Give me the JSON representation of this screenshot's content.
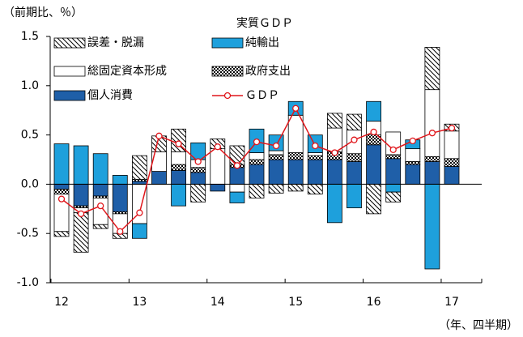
{
  "chart_data": {
    "type": "bar",
    "title": "実質ＧＤＰ",
    "y_label": "（前期比、％）",
    "x_label": "（年、四半期）",
    "categories": [
      "12",
      null,
      null,
      null,
      "13",
      null,
      null,
      null,
      "14",
      null,
      null,
      null,
      "15",
      null,
      null,
      null,
      "16",
      null,
      null,
      null,
      "17"
    ],
    "ylim": [
      -1.0,
      1.5
    ],
    "yticks": [
      1.5,
      {
        "value": 1.0,
        "label": "1.0"
      },
      0.5,
      {
        "value": 0.0,
        "label": "0.0"
      },
      -0.5,
      {
        "value": -1.0,
        "label": "-1.0"
      }
    ],
    "series": [
      {
        "name": "個人消費",
        "color": "#1f5fa8",
        "values": [
          -0.05,
          -0.22,
          -0.12,
          -0.28,
          0.03,
          0.13,
          0.14,
          0.12,
          -0.07,
          0.17,
          0.2,
          0.25,
          0.25,
          0.25,
          0.25,
          0.23,
          0.4,
          0.26,
          0.2,
          0.23,
          0.18
        ]
      },
      {
        "name": "政府支出",
        "color": "#000000",
        "pattern": "checker",
        "values": [
          -0.05,
          -0.02,
          -0.02,
          -0.02,
          0.02,
          0.0,
          0.06,
          0.05,
          0.0,
          0.03,
          0.05,
          0.05,
          0.07,
          0.04,
          0.08,
          0.08,
          0.1,
          0.04,
          0.03,
          0.05,
          0.08
        ]
      },
      {
        "name": "総固定資本形成",
        "color": "#ffffff",
        "values": [
          -0.38,
          -0.05,
          -0.27,
          -0.2,
          -0.4,
          0.2,
          0.13,
          0.08,
          0.36,
          -0.08,
          0.07,
          0.04,
          0.38,
          0.03,
          0.24,
          0.24,
          0.14,
          0.23,
          0.13,
          0.68,
          0.28
        ]
      },
      {
        "name": "純輸出",
        "color": "#1ea0dc",
        "values": [
          0.41,
          0.39,
          0.31,
          0.09,
          -0.15,
          0.0,
          -0.22,
          0.17,
          0.0,
          -0.11,
          0.24,
          0.16,
          0.14,
          0.18,
          -0.39,
          -0.24,
          0.2,
          -0.08,
          0.09,
          -0.86,
          0.0
        ]
      },
      {
        "name": "誤差・脱漏",
        "color": "#000000",
        "pattern": "hatch",
        "values": [
          -0.05,
          -0.4,
          -0.04,
          -0.05,
          0.24,
          0.16,
          0.23,
          -0.18,
          0.1,
          0.19,
          -0.14,
          -0.09,
          -0.07,
          -0.1,
          0.15,
          0.16,
          -0.3,
          -0.1,
          0.0,
          0.43,
          0.07
        ]
      },
      {
        "name": "ＧＤＰ",
        "color": "#e0161b",
        "type": "line",
        "values": [
          -0.15,
          -0.3,
          -0.22,
          -0.48,
          -0.29,
          0.49,
          0.41,
          0.23,
          0.38,
          0.19,
          0.43,
          0.39,
          0.77,
          0.39,
          0.32,
          0.45,
          0.53,
          0.35,
          0.44,
          0.52,
          0.57
        ]
      }
    ]
  }
}
